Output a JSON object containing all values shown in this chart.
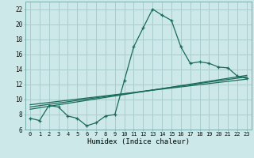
{
  "title": "",
  "xlabel": "Humidex (Indice chaleur)",
  "background_color": "#cce8e8",
  "grid_color": "#aacccc",
  "line_color": "#1a6b5a",
  "xlim": [
    -0.5,
    23.5
  ],
  "ylim": [
    6,
    23
  ],
  "xtick_labels": [
    "0",
    "1",
    "2",
    "3",
    "4",
    "5",
    "6",
    "7",
    "8",
    "9",
    "10",
    "11",
    "12",
    "13",
    "14",
    "15",
    "16",
    "17",
    "18",
    "19",
    "20",
    "21",
    "22",
    "23"
  ],
  "yticks": [
    6,
    8,
    10,
    12,
    14,
    16,
    18,
    20,
    22
  ],
  "main_curve_x": [
    0,
    1,
    2,
    3,
    4,
    5,
    6,
    7,
    8,
    9,
    10,
    11,
    12,
    13,
    14,
    15,
    16,
    17,
    18,
    19,
    20,
    21,
    22,
    23
  ],
  "main_curve_y": [
    7.5,
    7.2,
    9.2,
    9.0,
    7.8,
    7.5,
    6.5,
    6.9,
    7.8,
    8.0,
    12.5,
    17.0,
    19.5,
    22.0,
    21.2,
    20.5,
    17.0,
    14.8,
    15.0,
    14.8,
    14.3,
    14.2,
    13.1,
    12.8
  ],
  "trend_line1_x": [
    0,
    23
  ],
  "trend_line1_y": [
    8.7,
    13.2
  ],
  "trend_line2_x": [
    0,
    23
  ],
  "trend_line2_y": [
    9.0,
    13.0
  ],
  "trend_line3_x": [
    0,
    23
  ],
  "trend_line3_y": [
    9.3,
    12.7
  ]
}
